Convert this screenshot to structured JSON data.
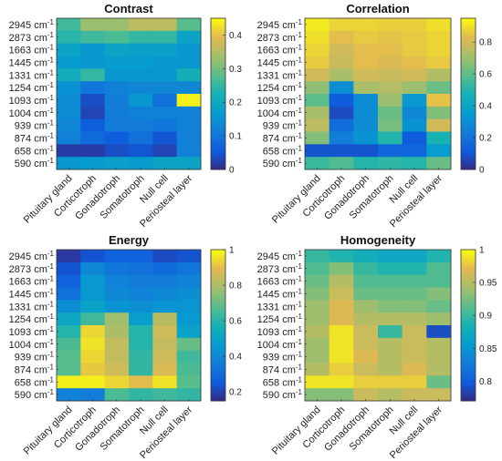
{
  "chart_data": [
    {
      "type": "heatmap",
      "title": "Contrast",
      "x": [
        "Pituitary gland",
        "Corticotroph",
        "Gonadotroph",
        "Somatotroph",
        "Null cell",
        "Periosteal layer"
      ],
      "y": [
        "2945",
        "2873",
        "1663",
        "1445",
        "1331",
        "1254",
        "1093",
        "1004",
        "939",
        "874",
        "658",
        "590"
      ],
      "y_unit": "cm",
      "y_unit_exp": "-1",
      "clim": [
        0,
        0.45
      ],
      "colorbar_ticks": [
        0,
        0.1,
        0.2,
        0.3,
        0.4
      ],
      "colorbar_labels": [
        "0",
        "0.1",
        "0.2",
        "0.3",
        "0.4"
      ],
      "values": [
        [
          0.26,
          0.33,
          0.33,
          0.36,
          0.36,
          0.28
        ],
        [
          0.24,
          0.26,
          0.27,
          0.25,
          0.25,
          0.19
        ],
        [
          0.19,
          0.16,
          0.19,
          0.18,
          0.18,
          0.16
        ],
        [
          0.17,
          0.16,
          0.17,
          0.17,
          0.16,
          0.16
        ],
        [
          0.21,
          0.25,
          0.16,
          0.16,
          0.16,
          0.22
        ],
        [
          0.15,
          0.1,
          0.12,
          0.13,
          0.13,
          0.13
        ],
        [
          0.14,
          0.04,
          0.11,
          0.16,
          0.09,
          0.44
        ],
        [
          0.14,
          0.03,
          0.11,
          0.12,
          0.12,
          0.12
        ],
        [
          0.13,
          0.06,
          0.11,
          0.11,
          0.1,
          0.12
        ],
        [
          0.12,
          0.08,
          0.06,
          0.09,
          0.05,
          0.12
        ],
        [
          0.02,
          0.02,
          0.04,
          0.05,
          0.03,
          0.12
        ],
        [
          0.16,
          0.17,
          0.18,
          0.17,
          0.19,
          0.19
        ]
      ]
    },
    {
      "type": "heatmap",
      "title": "Correlation",
      "x": [
        "Pituitary gland",
        "Corticotroph",
        "Gonadotroph",
        "Somatotroph",
        "Null cell",
        "Periosteal layer"
      ],
      "y": [
        "2945",
        "2873",
        "1663",
        "1445",
        "1331",
        "1254",
        "1093",
        "1004",
        "939",
        "874",
        "658",
        "590"
      ],
      "y_unit": "cm",
      "y_unit_exp": "-1",
      "clim": [
        0,
        0.95
      ],
      "colorbar_ticks": [
        0,
        0.2,
        0.4,
        0.6,
        0.8
      ],
      "colorbar_labels": [
        "0",
        "0.2",
        "0.4",
        "0.6",
        "0.8"
      ],
      "values": [
        [
          0.92,
          0.88,
          0.88,
          0.87,
          0.87,
          0.9
        ],
        [
          0.9,
          0.84,
          0.86,
          0.85,
          0.86,
          0.88
        ],
        [
          0.88,
          0.8,
          0.84,
          0.84,
          0.86,
          0.88
        ],
        [
          0.86,
          0.78,
          0.84,
          0.82,
          0.84,
          0.86
        ],
        [
          0.8,
          0.72,
          0.8,
          0.78,
          0.8,
          0.74
        ],
        [
          0.68,
          0.3,
          0.72,
          0.74,
          0.7,
          0.62
        ],
        [
          0.6,
          0.12,
          0.3,
          0.7,
          0.34,
          0.85
        ],
        [
          0.72,
          0.08,
          0.3,
          0.62,
          0.28,
          0.66
        ],
        [
          0.76,
          0.18,
          0.3,
          0.64,
          0.32,
          0.8
        ],
        [
          0.66,
          0.24,
          0.32,
          0.5,
          0.12,
          0.48
        ],
        [
          0.1,
          0.1,
          0.1,
          0.16,
          0.16,
          0.36
        ],
        [
          0.54,
          0.58,
          0.5,
          0.52,
          0.5,
          0.62
        ]
      ]
    },
    {
      "type": "heatmap",
      "title": "Energy",
      "x": [
        "Pituitary gland",
        "Corticotroph",
        "Gonadotroph",
        "Somatotroph",
        "Null cell",
        "Periosteal layer"
      ],
      "y": [
        "2945",
        "2873",
        "1663",
        "1445",
        "1331",
        "1254",
        "1093",
        "1004",
        "939",
        "874",
        "658",
        "590"
      ],
      "y_unit": "cm",
      "y_unit_exp": "-1",
      "clim": [
        0.15,
        1.0
      ],
      "colorbar_ticks": [
        0.2,
        0.4,
        0.6,
        0.8,
        1.0
      ],
      "colorbar_labels": [
        "0.2",
        "0.4",
        "0.6",
        "0.8",
        "1"
      ],
      "values": [
        [
          0.18,
          0.24,
          0.28,
          0.28,
          0.22,
          0.24
        ],
        [
          0.24,
          0.4,
          0.34,
          0.32,
          0.3,
          0.34
        ],
        [
          0.28,
          0.46,
          0.38,
          0.36,
          0.36,
          0.38
        ],
        [
          0.32,
          0.46,
          0.4,
          0.38,
          0.4,
          0.42
        ],
        [
          0.42,
          0.5,
          0.44,
          0.42,
          0.44,
          0.44
        ],
        [
          0.52,
          0.64,
          0.78,
          0.48,
          0.82,
          0.46
        ],
        [
          0.6,
          0.94,
          0.8,
          0.6,
          0.86,
          0.5
        ],
        [
          0.66,
          0.96,
          0.84,
          0.6,
          0.84,
          0.7
        ],
        [
          0.68,
          0.94,
          0.84,
          0.62,
          0.86,
          0.64
        ],
        [
          0.68,
          0.92,
          0.86,
          0.62,
          0.88,
          0.66
        ],
        [
          0.98,
          0.98,
          0.94,
          0.9,
          0.96,
          0.68
        ],
        [
          0.38,
          0.36,
          0.66,
          0.62,
          0.64,
          0.62
        ]
      ]
    },
    {
      "type": "heatmap",
      "title": "Homogeneity",
      "x": [
        "Pituitary gland",
        "Corticotroph",
        "Gonadotroph",
        "Somatotroph",
        "Null cell",
        "Periosteal layer"
      ],
      "y": [
        "2945",
        "2873",
        "1663",
        "1445",
        "1331",
        "1254",
        "1093",
        "1004",
        "939",
        "874",
        "658",
        "590"
      ],
      "y_unit": "cm",
      "y_unit_exp": "-1",
      "clim": [
        0.77,
        1.0
      ],
      "colorbar_ticks": [
        0.8,
        0.85,
        0.9,
        0.95,
        1.0
      ],
      "colorbar_labels": [
        "0.8",
        "0.85",
        "0.9",
        "0.95",
        "1"
      ],
      "values": [
        [
          0.9,
          0.89,
          0.88,
          0.87,
          0.87,
          0.89
        ],
        [
          0.91,
          0.93,
          0.9,
          0.89,
          0.89,
          0.91
        ],
        [
          0.92,
          0.95,
          0.91,
          0.91,
          0.91,
          0.91
        ],
        [
          0.93,
          0.96,
          0.92,
          0.92,
          0.92,
          0.93
        ],
        [
          0.94,
          0.97,
          0.94,
          0.93,
          0.93,
          0.92
        ],
        [
          0.94,
          0.97,
          0.95,
          0.95,
          0.95,
          0.94
        ],
        [
          0.95,
          0.99,
          0.96,
          0.9,
          0.96,
          0.79
        ],
        [
          0.94,
          0.99,
          0.96,
          0.95,
          0.96,
          0.95
        ],
        [
          0.94,
          0.99,
          0.97,
          0.95,
          0.96,
          0.95
        ],
        [
          0.95,
          0.98,
          0.96,
          0.95,
          0.97,
          0.95
        ],
        [
          0.99,
          0.99,
          0.98,
          0.98,
          0.98,
          0.92
        ],
        [
          0.93,
          0.93,
          0.96,
          0.95,
          0.96,
          0.96
        ]
      ]
    }
  ]
}
